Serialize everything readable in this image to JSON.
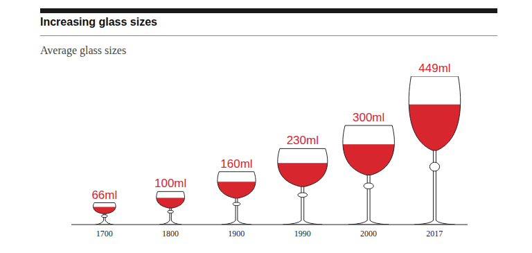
{
  "chart_data": {
    "type": "bar",
    "title": "Increasing glass sizes",
    "subtitle": "Average glass sizes",
    "categories": [
      "1700",
      "1800",
      "1900",
      "1990",
      "2000",
      "2017"
    ],
    "values": [
      66,
      100,
      160,
      230,
      300,
      449
    ],
    "value_labels": [
      "66ml",
      "100ml",
      "160ml",
      "230ml",
      "300ml",
      "449ml"
    ],
    "color": "#d7262e",
    "data_labels": true,
    "tick_labels": "x",
    "marker": "wine_glass"
  }
}
